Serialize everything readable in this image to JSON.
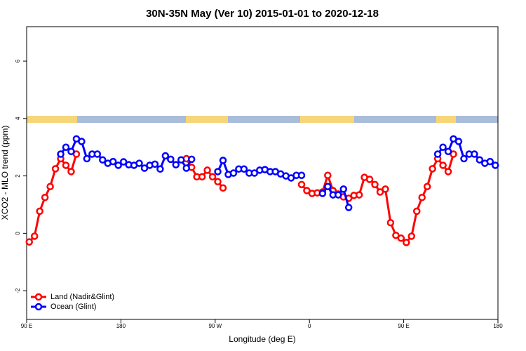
{
  "chart_data": {
    "type": "line",
    "title": "30N-35N May (Ver 10)   2015-01-01 to 2020-12-18",
    "x_label": "Longitude (deg E)",
    "y_label": "XCO2 - MLO trend (ppm)",
    "x": [
      92.5,
      97.5,
      102.5,
      107.5,
      112.5,
      117.5,
      122.5,
      127.5,
      132.5,
      137.5,
      142.5,
      147.5,
      152.5,
      157.5,
      162.5,
      167.5,
      172.5,
      177.5,
      182.5,
      187.5,
      192.5,
      197.5,
      202.5,
      207.5,
      212.5,
      217.5,
      222.5,
      227.5,
      232.5,
      237.5,
      242.5,
      247.5,
      252.5,
      257.5,
      262.5,
      267.5,
      272.5,
      277.5,
      282.5,
      287.5,
      292.5,
      297.5,
      302.5,
      307.5,
      312.5,
      317.5,
      322.5,
      327.5,
      332.5,
      337.5,
      342.5,
      347.5,
      352.5,
      357.5,
      362.5,
      367.5,
      372.5,
      377.5,
      382.5,
      387.5,
      392.5,
      397.5,
      402.5,
      407.5,
      412.5,
      417.5,
      422.5,
      427.5,
      432.5,
      437.5,
      442.5,
      447.5,
      452.5,
      457.5,
      462.5,
      467.5,
      472.5,
      477.5,
      482.5,
      487.5,
      492.5,
      497.5,
      502.5,
      507.5,
      512.5,
      517.5,
      522.5,
      527.5,
      532.5,
      537.5
    ],
    "series": [
      {
        "name": "Land (Nadir&Glint)",
        "color": "#ff0000",
        "values": [
          -0.3,
          -0.1,
          0.77,
          1.25,
          1.63,
          2.25,
          2.6,
          2.37,
          2.15,
          2.76,
          null,
          null,
          null,
          null,
          null,
          null,
          null,
          null,
          null,
          null,
          null,
          null,
          null,
          null,
          null,
          null,
          null,
          null,
          null,
          null,
          2.6,
          2.3,
          1.97,
          1.97,
          2.2,
          1.97,
          1.8,
          1.58,
          null,
          null,
          null,
          null,
          null,
          null,
          null,
          null,
          null,
          null,
          null,
          null,
          null,
          null,
          1.7,
          1.49,
          1.39,
          1.41,
          1.44,
          2.02,
          1.49,
          1.37,
          1.27,
          1.22,
          1.32,
          1.34,
          1.95,
          1.88,
          1.7,
          1.44,
          1.54,
          0.37,
          -0.07,
          -0.17,
          -0.32,
          -0.1,
          0.77,
          1.25,
          1.63,
          2.25,
          2.6,
          2.37,
          2.15,
          2.76,
          null,
          null,
          null,
          null,
          null,
          null,
          null,
          null
        ]
      },
      {
        "name": "Ocean (Glint)",
        "color": "#0000ff",
        "values": [
          null,
          null,
          null,
          null,
          null,
          null,
          2.76,
          3.0,
          2.85,
          3.29,
          3.2,
          2.6,
          2.76,
          2.76,
          2.56,
          2.44,
          2.5,
          2.37,
          2.49,
          2.39,
          2.37,
          2.44,
          2.27,
          2.37,
          2.41,
          2.24,
          2.7,
          2.58,
          2.39,
          2.56,
          2.27,
          2.58,
          null,
          null,
          null,
          null,
          2.15,
          2.54,
          2.05,
          2.1,
          2.24,
          2.24,
          2.1,
          2.1,
          2.2,
          2.22,
          2.15,
          2.15,
          2.07,
          2.0,
          1.93,
          2.02,
          2.02,
          null,
          null,
          null,
          1.39,
          1.63,
          1.34,
          1.34,
          1.54,
          0.9,
          null,
          null,
          null,
          null,
          null,
          null,
          null,
          null,
          null,
          null,
          null,
          null,
          null,
          null,
          null,
          null,
          2.76,
          3.0,
          2.85,
          3.29,
          3.2,
          2.6,
          2.76,
          2.76,
          2.56,
          2.44,
          2.5,
          2.37
        ]
      }
    ],
    "xlim": [
      90,
      540
    ],
    "xticks": [
      {
        "value": 90,
        "label": "90 E"
      },
      180,
      {
        "value": 270,
        "label": "90 W"
      },
      {
        "value": 360,
        "label": "0"
      },
      {
        "value": 450,
        "label": "90 E"
      },
      {
        "value": 540,
        "label": "180"
      }
    ],
    "ylim": [
      -3,
      7.2
    ],
    "yticks": [
      -2,
      0,
      2,
      4,
      6
    ],
    "legend": "bottom-left"
  }
}
